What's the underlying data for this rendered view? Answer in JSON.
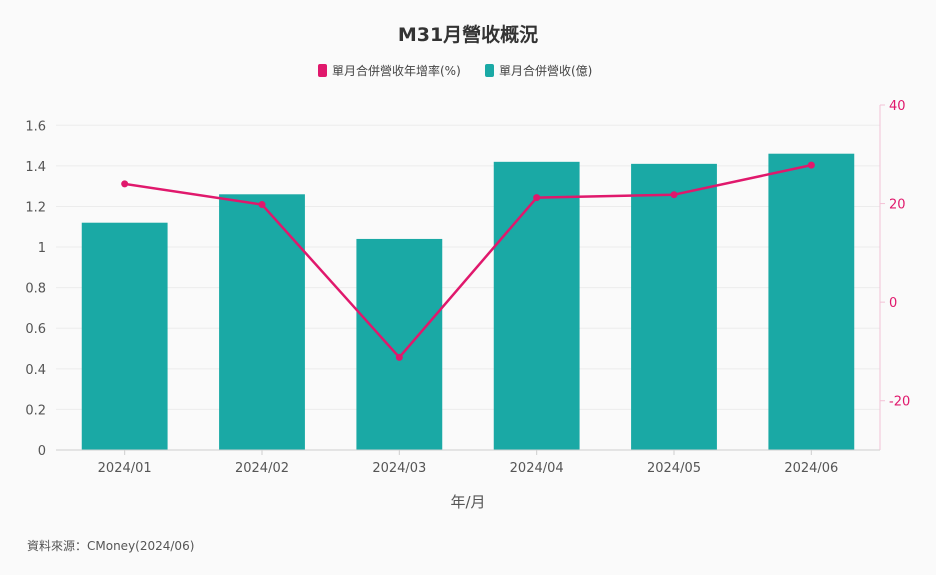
{
  "chart_data": {
    "type": "bar+line",
    "title": "M31月營收概況",
    "categories": [
      "2024/01",
      "2024/02",
      "2024/03",
      "2024/04",
      "2024/05",
      "2024/06"
    ],
    "series": [
      {
        "name": "單月合併營收(億)",
        "kind": "bar",
        "axis": "left",
        "color": "#1aa9a5",
        "values": [
          1.12,
          1.26,
          1.04,
          1.42,
          1.41,
          1.46
        ]
      },
      {
        "name": "單月合併營收年增率(%)",
        "kind": "line",
        "axis": "right",
        "color": "#e0186c",
        "values": [
          24.0,
          19.8,
          -11.2,
          21.2,
          21.8,
          27.8
        ]
      }
    ],
    "xlabel": "年/月",
    "ylim_left": [
      0,
      1.7
    ],
    "yticks_left": [
      0,
      0.2,
      0.4,
      0.6,
      0.8,
      1,
      1.2,
      1.4,
      1.6
    ],
    "ytick_labels_left": [
      "0",
      "0.2",
      "0.4",
      "0.6",
      "0.8",
      "1",
      "1.2",
      "1.4",
      "1.6"
    ],
    "ylim_right": [
      -30,
      40
    ],
    "yticks_right": [
      -20,
      0,
      20,
      40
    ],
    "ytick_labels_right": [
      "-20",
      "0",
      "20",
      "40"
    ],
    "legend_position": "top-center"
  },
  "source": "資料來源：CMoney(2024/06)"
}
